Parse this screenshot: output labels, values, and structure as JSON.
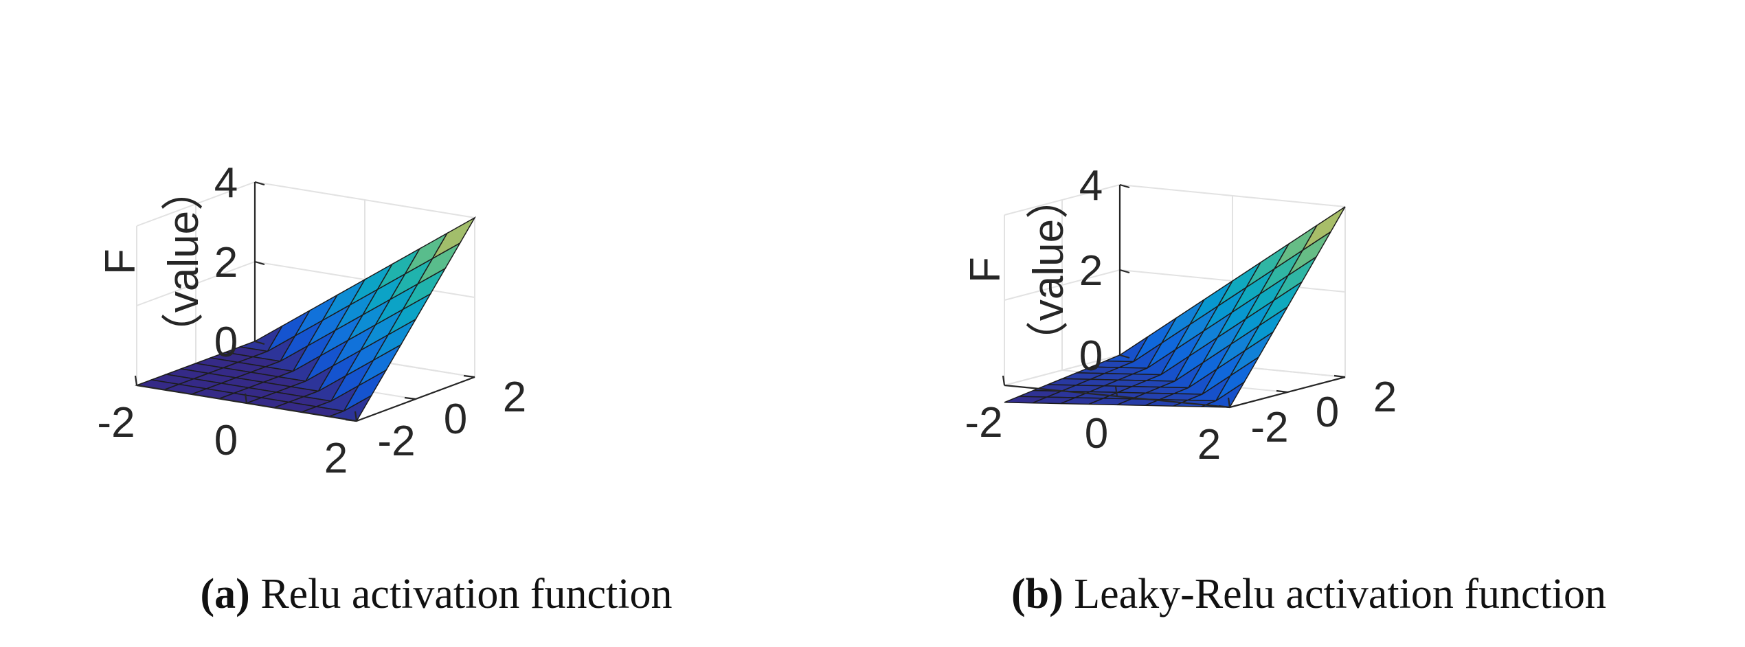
{
  "chart_data": [
    {
      "type": "surface",
      "function": "relu",
      "zlabel": "F (value)",
      "zlabel_line1": "F",
      "zlabel_line2": "（value）",
      "x": [
        -2,
        -1.5,
        -1,
        -0.5,
        0,
        0.5,
        1,
        1.5,
        2
      ],
      "y": [
        -2,
        -1.5,
        -1,
        -0.5,
        0,
        0.5,
        1,
        1.5,
        2
      ],
      "z_formula": "max(0, x + y)",
      "xlim": [
        -2,
        2
      ],
      "ylim": [
        -2,
        2
      ],
      "zlim": [
        0,
        4
      ],
      "xticks": [
        "-2",
        "0",
        "2"
      ],
      "yticks": [
        "-2",
        "0",
        "2"
      ],
      "zticks": [
        "0",
        "2",
        "4"
      ],
      "grid": true,
      "colormap": "parula",
      "caption_letter": "(a)",
      "caption_text": "Relu activation function"
    },
    {
      "type": "surface",
      "function": "leaky-relu",
      "zlabel": "F (value)",
      "zlabel_line1": "F",
      "zlabel_line2": "（value）",
      "x": [
        -2,
        -1.5,
        -1,
        -0.5,
        0,
        0.5,
        1,
        1.5,
        2
      ],
      "y": [
        -2,
        -1.5,
        -1,
        -0.5,
        0,
        0.5,
        1,
        1.5,
        2
      ],
      "z_formula": "s >= 0 ? s : 0.1*s, s = x + y",
      "leak": 0.1,
      "xlim": [
        -2,
        2
      ],
      "ylim": [
        -2,
        2
      ],
      "zlim": [
        -0.4,
        4
      ],
      "xticks": [
        "-2",
        "0",
        "2"
      ],
      "yticks": [
        "-2",
        "0",
        "2"
      ],
      "zticks": [
        "0",
        "2",
        "4"
      ],
      "grid": true,
      "colormap": "parula",
      "caption_letter": "(b)",
      "caption_text": "Leaky-Relu activation function"
    }
  ]
}
